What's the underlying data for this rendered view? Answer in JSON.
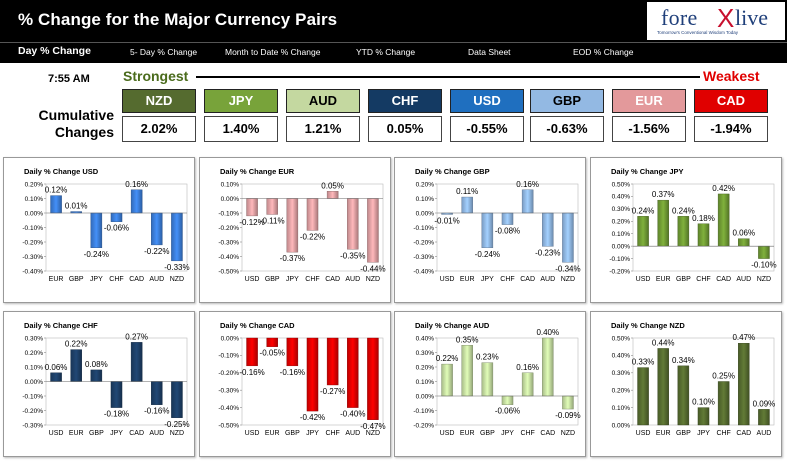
{
  "header": {
    "title": "% Change for the Major Currency Pairs"
  },
  "logo": {
    "brand_left": "fore",
    "brand_x": "X",
    "brand_right": "live",
    "tagline": "Tomorrow's Conventional Wisdom Today"
  },
  "nav": [
    {
      "label": "Day % Change"
    },
    {
      "label": "5- Day % Change"
    },
    {
      "label": "Month to Date % Change"
    },
    {
      "label": "YTD % Change"
    },
    {
      "label": "Data Sheet"
    },
    {
      "label": "EOD % Change"
    }
  ],
  "time": "7:55 AM",
  "scale": {
    "strongest": "Strongest",
    "weakest": "Weakest"
  },
  "cumulative_label": "Cumulative Changes",
  "colors": {
    "accent_green": "#4a6b1c",
    "accent_red": "#e00000"
  },
  "currencies": [
    {
      "code": "NZD",
      "value": "2.02%",
      "bg": "#556b2f",
      "fg": "#ffffff"
    },
    {
      "code": "JPY",
      "value": "1.40%",
      "bg": "#78a33a",
      "fg": "#ffffff"
    },
    {
      "code": "AUD",
      "value": "1.21%",
      "bg": "#c4d8a0",
      "fg": "#000000"
    },
    {
      "code": "CHF",
      "value": "0.05%",
      "bg": "#143a63",
      "fg": "#ffffff"
    },
    {
      "code": "USD",
      "value": "-0.55%",
      "bg": "#1f6fbf",
      "fg": "#ffffff"
    },
    {
      "code": "GBP",
      "value": "-0.63%",
      "bg": "#93b9e3",
      "fg": "#000000"
    },
    {
      "code": "EUR",
      "value": "-1.56%",
      "bg": "#e3999b",
      "fg": "#ffffff"
    },
    {
      "code": "CAD",
      "value": "-1.94%",
      "bg": "#e00000",
      "fg": "#ffffff"
    }
  ],
  "chart_data": [
    {
      "type": "bar",
      "title": "Daily % Change USD",
      "color": "#3b7dd8",
      "categories": [
        "EUR",
        "GBP",
        "JPY",
        "CHF",
        "CAD",
        "AUD",
        "NZD"
      ],
      "values": [
        0.12,
        0.01,
        -0.24,
        -0.06,
        0.16,
        -0.22,
        -0.33
      ],
      "labels": [
        "0.12%",
        "0.01%",
        "-0.24%",
        "-0.06%",
        "0.16%",
        "-0.22%",
        "-0.33%"
      ],
      "ylim": [
        -0.4,
        0.2
      ],
      "ticks": [
        "0.20%",
        "0.10%",
        "0.00%",
        "-0.10%",
        "-0.20%",
        "-0.30%",
        "-0.40%"
      ]
    },
    {
      "type": "bar",
      "title": "Daily % Change EUR",
      "color": "#e0a0a3",
      "categories": [
        "USD",
        "GBP",
        "JPY",
        "CHF",
        "CAD",
        "AUD",
        "NZD"
      ],
      "values": [
        -0.12,
        -0.11,
        -0.37,
        -0.22,
        0.05,
        -0.35,
        -0.44
      ],
      "labels": [
        "-0.12%",
        "-0.11%",
        "-0.37%",
        "-0.22%",
        "0.05%",
        "-0.35%",
        "-0.44%"
      ],
      "ylim": [
        -0.5,
        0.1
      ],
      "ticks": [
        "0.10%",
        "0.00%",
        "-0.10%",
        "-0.20%",
        "-0.30%",
        "-0.40%",
        "-0.50%"
      ]
    },
    {
      "type": "bar",
      "title": "Daily % Change GBP",
      "color": "#8fb6e4",
      "categories": [
        "USD",
        "EUR",
        "JPY",
        "CHF",
        "CAD",
        "AUD",
        "NZD"
      ],
      "values": [
        -0.01,
        0.11,
        -0.24,
        -0.08,
        0.16,
        -0.23,
        -0.34
      ],
      "labels": [
        "-0.01%",
        "0.11%",
        "-0.24%",
        "-0.08%",
        "0.16%",
        "-0.23%",
        "-0.34%"
      ],
      "ylim": [
        -0.4,
        0.2
      ],
      "ticks": [
        "0.20%",
        "0.10%",
        "0.00%",
        "-0.10%",
        "-0.20%",
        "-0.30%",
        "-0.40%"
      ]
    },
    {
      "type": "bar",
      "title": "Daily % Change JPY",
      "color": "#6f9a34",
      "categories": [
        "USD",
        "EUR",
        "GBP",
        "CHF",
        "CAD",
        "AUD",
        "NZD"
      ],
      "values": [
        0.24,
        0.37,
        0.24,
        0.18,
        0.42,
        0.06,
        -0.1
      ],
      "labels": [
        "0.24%",
        "0.37%",
        "0.24%",
        "0.18%",
        "0.42%",
        "0.06%",
        "-0.10%"
      ],
      "ylim": [
        -0.2,
        0.5
      ],
      "ticks": [
        "0.50%",
        "0.40%",
        "0.30%",
        "0.20%",
        "0.10%",
        "0.00%",
        "-0.10%",
        "-0.20%"
      ]
    },
    {
      "type": "bar",
      "title": "Daily % Change CHF",
      "color": "#1d3f66",
      "categories": [
        "USD",
        "EUR",
        "GBP",
        "JPY",
        "CAD",
        "AUD",
        "NZD"
      ],
      "values": [
        0.06,
        0.22,
        0.08,
        -0.18,
        0.27,
        -0.16,
        -0.25
      ],
      "labels": [
        "0.06%",
        "0.22%",
        "0.08%",
        "-0.18%",
        "0.27%",
        "-0.16%",
        "-0.25%"
      ],
      "ylim": [
        -0.3,
        0.3
      ],
      "ticks": [
        "0.30%",
        "0.20%",
        "0.10%",
        "0.00%",
        "-0.10%",
        "-0.20%",
        "-0.30%"
      ]
    },
    {
      "type": "bar",
      "title": "Daily % Change CAD",
      "color": "#e00000",
      "categories": [
        "USD",
        "EUR",
        "GBP",
        "JPY",
        "CHF",
        "AUD",
        "NZD"
      ],
      "values": [
        -0.16,
        -0.05,
        -0.16,
        -0.42,
        -0.27,
        -0.4,
        -0.47
      ],
      "labels": [
        "-0.16%",
        "-0.05%",
        "-0.16%",
        "-0.42%",
        "-0.27%",
        "-0.40%",
        "-0.47%"
      ],
      "ylim": [
        -0.5,
        0.0
      ],
      "ticks": [
        "0.00%",
        "-0.10%",
        "-0.20%",
        "-0.30%",
        "-0.40%",
        "-0.50%"
      ]
    },
    {
      "type": "bar",
      "title": "Daily % Change AUD",
      "color": "#c4dca0",
      "categories": [
        "USD",
        "EUR",
        "GBP",
        "JPY",
        "CHF",
        "CAD",
        "NZD"
      ],
      "values": [
        0.22,
        0.35,
        0.23,
        -0.06,
        0.16,
        0.4,
        -0.09
      ],
      "labels": [
        "0.22%",
        "0.35%",
        "0.23%",
        "-0.06%",
        "0.16%",
        "0.40%",
        "-0.09%"
      ],
      "ylim": [
        -0.2,
        0.4
      ],
      "ticks": [
        "0.40%",
        "0.30%",
        "0.20%",
        "0.10%",
        "0.00%",
        "-0.10%",
        "-0.20%"
      ]
    },
    {
      "type": "bar",
      "title": "Daily % Change NZD",
      "color": "#556b2f",
      "categories": [
        "USD",
        "EUR",
        "GBP",
        "JPY",
        "CHF",
        "CAD",
        "AUD"
      ],
      "values": [
        0.33,
        0.44,
        0.34,
        0.1,
        0.25,
        0.47,
        0.09
      ],
      "labels": [
        "0.33%",
        "0.44%",
        "0.34%",
        "0.10%",
        "0.25%",
        "0.47%",
        "0.09%"
      ],
      "ylim": [
        0.0,
        0.5
      ],
      "ticks": [
        "0.50%",
        "0.40%",
        "0.30%",
        "0.20%",
        "0.10%",
        "0.00%"
      ]
    }
  ]
}
